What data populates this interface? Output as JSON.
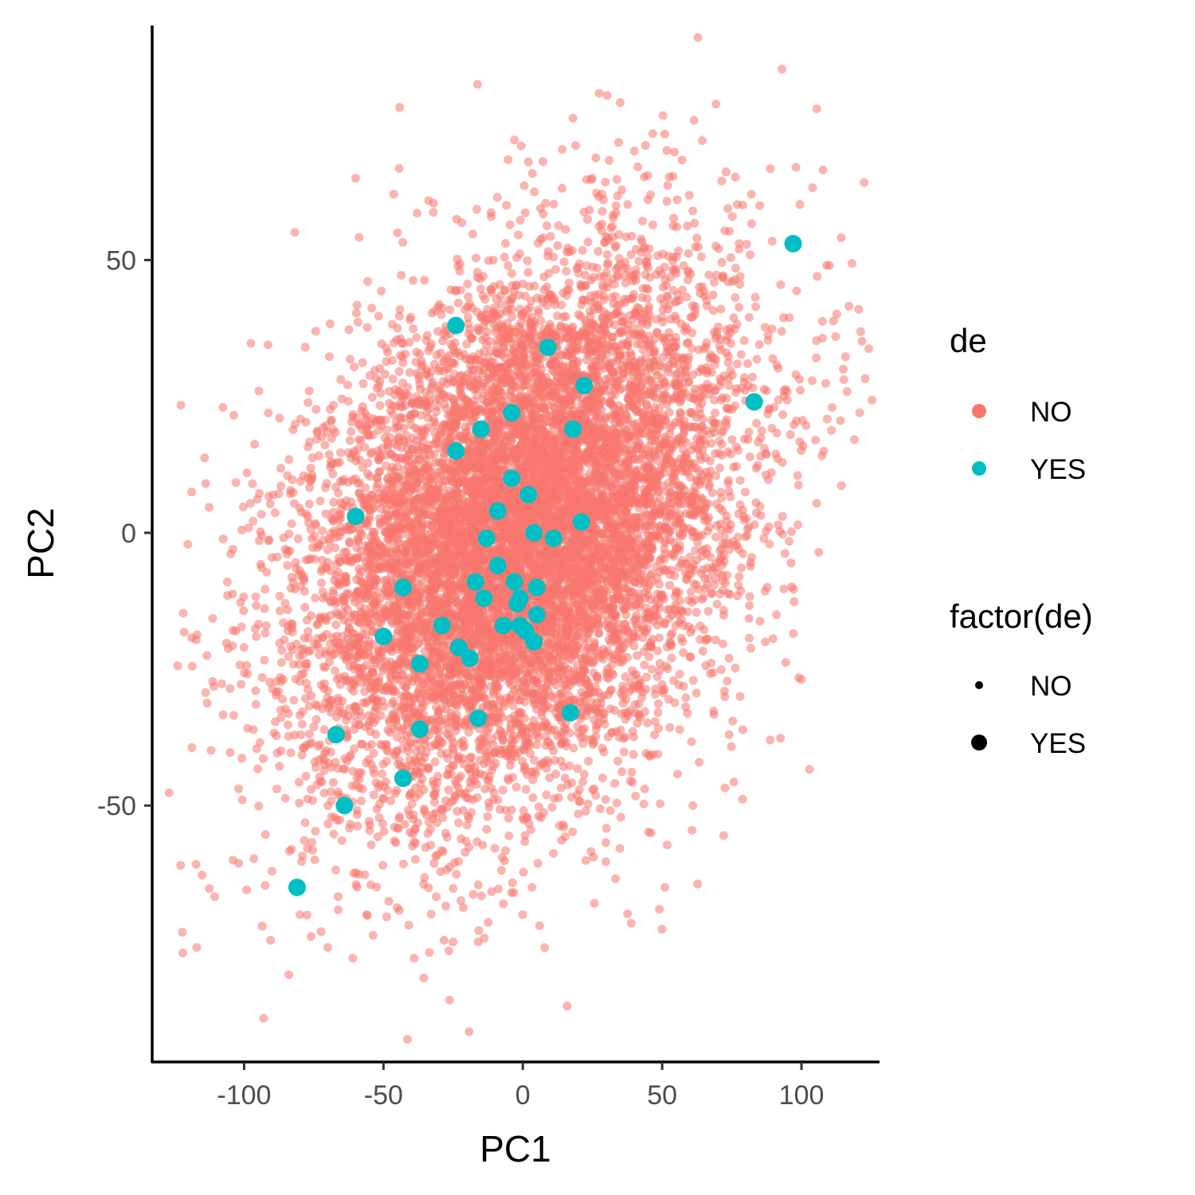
{
  "chart_data": {
    "type": "scatter",
    "xlabel": "PC1",
    "ylabel": "PC2",
    "xlim": [
      -133,
      128
    ],
    "ylim": [
      -97,
      93
    ],
    "x_ticks": [
      {
        "value": -100,
        "label": "-100"
      },
      {
        "value": -50,
        "label": "-50"
      },
      {
        "value": 0,
        "label": "0"
      },
      {
        "value": 50,
        "label": "50"
      },
      {
        "value": 100,
        "label": "100"
      }
    ],
    "y_ticks": [
      {
        "value": -50,
        "label": "-50"
      },
      {
        "value": 0,
        "label": "0"
      },
      {
        "value": 50,
        "label": "50"
      }
    ],
    "grid": false,
    "legend_position": "right",
    "legends": [
      {
        "title": "de",
        "kind": "color",
        "entries": [
          {
            "label": "NO",
            "color": "#F8766D"
          },
          {
            "label": "YES",
            "color": "#00BFC4"
          }
        ]
      },
      {
        "title": "factor(de)",
        "kind": "size",
        "entries": [
          {
            "label": "NO",
            "size": "small"
          },
          {
            "label": "YES",
            "size": "large"
          }
        ]
      }
    ],
    "series": [
      {
        "name": "NO",
        "color": "#F8766D",
        "alpha": 0.55,
        "n_points_approx": 10000,
        "distribution": {
          "mean_x": 0,
          "mean_y": 0,
          "sd_x": 38,
          "sd_y": 24,
          "correlation": 0.33
        },
        "outlier_points": [
          [
            -122,
            -77
          ],
          [
            -117,
            -76
          ],
          [
            -93,
            -89
          ],
          [
            -84,
            -81
          ],
          [
            -104,
            -60
          ],
          [
            -100,
            -21
          ],
          [
            -103,
            -18
          ],
          [
            -106,
            -9
          ],
          [
            -104,
            -3
          ],
          [
            -99,
            11
          ],
          [
            -97,
            9
          ],
          [
            -80,
            -70
          ],
          [
            -76,
            -74
          ],
          [
            -60,
            65
          ],
          [
            -45,
            55
          ],
          [
            -3,
            72
          ],
          [
            2,
            68
          ],
          [
            18,
            76
          ],
          [
            19,
            71
          ],
          [
            40,
            70
          ],
          [
            44,
            71
          ],
          [
            93,
            85
          ],
          [
            98,
            67
          ],
          [
            110,
            49
          ],
          [
            115,
            30
          ],
          [
            111,
            23
          ],
          [
            105,
            17
          ],
          [
            108,
            15
          ],
          [
            96,
            18
          ],
          [
            98,
            29
          ],
          [
            78,
            47
          ],
          [
            85,
            60
          ],
          [
            61,
            59
          ],
          [
            58,
            37
          ],
          [
            51,
            12
          ],
          [
            87,
            -20
          ],
          [
            91,
            -15
          ],
          [
            74,
            -23
          ],
          [
            78,
            -30
          ],
          [
            74,
            -37
          ],
          [
            -39,
            -78
          ],
          [
            -25,
            -75
          ],
          [
            -16,
            -75
          ],
          [
            6,
            -72
          ],
          [
            -7,
            -68
          ],
          [
            49,
            -69
          ],
          [
            51,
            -65
          ],
          [
            61,
            -50
          ],
          [
            46,
            -55
          ],
          [
            -56,
            -70
          ],
          [
            -61,
            -78
          ],
          [
            -70,
            -76
          ],
          [
            -90,
            -62
          ],
          [
            -83,
            -58
          ]
        ]
      },
      {
        "name": "YES",
        "color": "#00BFC4",
        "alpha": 1,
        "points": [
          [
            97,
            53
          ],
          [
            -24,
            38
          ],
          [
            9,
            34
          ],
          [
            22,
            27
          ],
          [
            83,
            24
          ],
          [
            -4,
            22
          ],
          [
            -15,
            19
          ],
          [
            18,
            19
          ],
          [
            -24,
            15
          ],
          [
            -4,
            10
          ],
          [
            2,
            7
          ],
          [
            -9,
            4
          ],
          [
            -60,
            3
          ],
          [
            21,
            2
          ],
          [
            4,
            0
          ],
          [
            -13,
            -1
          ],
          [
            11,
            -1
          ],
          [
            -9,
            -6
          ],
          [
            -3,
            -9
          ],
          [
            -17,
            -9
          ],
          [
            -43,
            -10
          ],
          [
            5,
            -10
          ],
          [
            -1,
            -12
          ],
          [
            -14,
            -12
          ],
          [
            -2,
            -13
          ],
          [
            5,
            -15
          ],
          [
            -29,
            -17
          ],
          [
            -1,
            -17
          ],
          [
            -7,
            -17
          ],
          [
            1,
            -18
          ],
          [
            -50,
            -19
          ],
          [
            4,
            -20
          ],
          [
            -23,
            -21
          ],
          [
            -19,
            -23
          ],
          [
            -37,
            -24
          ],
          [
            17,
            -33
          ],
          [
            -16,
            -34
          ],
          [
            -37,
            -36
          ],
          [
            -67,
            -37
          ],
          [
            -43,
            -45
          ],
          [
            -64,
            -50
          ],
          [
            -81,
            -65
          ]
        ]
      }
    ]
  }
}
